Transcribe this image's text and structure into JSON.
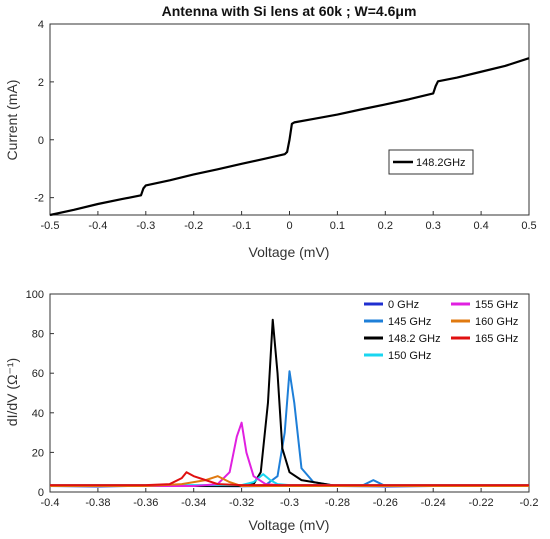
{
  "chart_data": [
    {
      "type": "line",
      "title": "Antenna with Si lens at 60k ; W=4.6μm",
      "xlabel": "Voltage (mV)",
      "ylabel": "Current (mA)",
      "xlim": [
        -0.5,
        0.5
      ],
      "ylim": [
        -2.6,
        4
      ],
      "xticks": [
        -0.5,
        -0.4,
        -0.3,
        -0.2,
        -0.1,
        0,
        0.1,
        0.2,
        0.3,
        0.4,
        0.5
      ],
      "xtick_labels": [
        "-0.5",
        "-0.4",
        "-0.3",
        "-0.2",
        "-0.1",
        "0",
        "0.1",
        "0.2",
        "0.3",
        "0.4",
        "0.5"
      ],
      "yticks": [
        -2,
        0,
        2,
        4
      ],
      "ytick_labels": [
        "-2",
        "0",
        "2",
        "4"
      ],
      "legend_position": "center-right",
      "series": [
        {
          "name": "148.2GHz",
          "color": "#000000",
          "x": [
            -0.5,
            -0.45,
            -0.4,
            -0.35,
            -0.31,
            -0.305,
            -0.3,
            -0.25,
            -0.2,
            -0.15,
            -0.1,
            -0.05,
            -0.01,
            -0.005,
            0,
            0.005,
            0.01,
            0.05,
            0.1,
            0.15,
            0.2,
            0.25,
            0.3,
            0.305,
            0.31,
            0.35,
            0.4,
            0.45,
            0.5
          ],
          "y": [
            -2.6,
            -2.42,
            -2.22,
            -2.05,
            -1.92,
            -1.68,
            -1.58,
            -1.4,
            -1.2,
            -1.02,
            -0.83,
            -0.65,
            -0.5,
            -0.42,
            0,
            0.55,
            0.6,
            0.72,
            0.87,
            1.05,
            1.22,
            1.4,
            1.6,
            1.85,
            2.02,
            2.15,
            2.35,
            2.55,
            2.82
          ]
        }
      ]
    },
    {
      "type": "line",
      "title": "",
      "xlabel": "Voltage (mV)",
      "ylabel": "dI/dV (Ω⁻¹)",
      "xlim": [
        -0.4,
        -0.2
      ],
      "ylim": [
        0,
        100
      ],
      "xticks": [
        -0.4,
        -0.38,
        -0.36,
        -0.34,
        -0.32,
        -0.3,
        -0.28,
        -0.26,
        -0.24,
        -0.22,
        -0.2
      ],
      "xtick_labels": [
        "-0.4",
        "-0.38",
        "-0.36",
        "-0.34",
        "-0.32",
        "-0.3",
        "-0.28",
        "-0.26",
        "-0.24",
        "-0.22",
        "-0.2"
      ],
      "yticks": [
        0,
        20,
        40,
        60,
        80,
        100
      ],
      "ytick_labels": [
        "0",
        "20",
        "40",
        "60",
        "80",
        "100"
      ],
      "legend_position": "top-right",
      "series": [
        {
          "name": "0 GHz",
          "color": "#1f2fd0",
          "x": [
            -0.4,
            -0.38,
            -0.36,
            -0.34,
            -0.32,
            -0.3,
            -0.28,
            -0.26,
            -0.24,
            -0.22,
            -0.2
          ],
          "y": [
            3,
            2.8,
            3.2,
            3,
            2.9,
            3.1,
            3,
            2.8,
            3,
            3.2,
            3
          ]
        },
        {
          "name": "145 GHz",
          "color": "#1e7fd8",
          "x": [
            -0.4,
            -0.38,
            -0.36,
            -0.34,
            -0.32,
            -0.31,
            -0.305,
            -0.302,
            -0.3,
            -0.298,
            -0.295,
            -0.29,
            -0.28,
            -0.27,
            -0.265,
            -0.26,
            -0.24,
            -0.22,
            -0.2
          ],
          "y": [
            3,
            3,
            3,
            3,
            3,
            3.5,
            8,
            30,
            61,
            45,
            12,
            5,
            3,
            3,
            6,
            3,
            3,
            3,
            3
          ]
        },
        {
          "name": "148.2 GHz",
          "color": "#000000",
          "x": [
            -0.4,
            -0.38,
            -0.36,
            -0.34,
            -0.32,
            -0.315,
            -0.312,
            -0.309,
            -0.307,
            -0.305,
            -0.303,
            -0.3,
            -0.295,
            -0.29,
            -0.285,
            -0.28,
            -0.26,
            -0.24,
            -0.22,
            -0.2
          ],
          "y": [
            3,
            3,
            3,
            3,
            3,
            4,
            10,
            45,
            87,
            60,
            22,
            10,
            6,
            5,
            4,
            3,
            3,
            3,
            3,
            3
          ]
        },
        {
          "name": "150 GHz",
          "color": "#19d6f0",
          "x": [
            -0.4,
            -0.38,
            -0.36,
            -0.34,
            -0.32,
            -0.315,
            -0.311,
            -0.308,
            -0.305,
            -0.3,
            -0.28,
            -0.26,
            -0.24,
            -0.22,
            -0.2
          ],
          "y": [
            3.5,
            3.5,
            3.5,
            3.5,
            3.5,
            5,
            9,
            6,
            4,
            3.5,
            3.5,
            3.5,
            3.5,
            3.5,
            3.5
          ]
        },
        {
          "name": "155 GHz",
          "color": "#e020e0",
          "x": [
            -0.4,
            -0.38,
            -0.36,
            -0.34,
            -0.33,
            -0.325,
            -0.322,
            -0.32,
            -0.318,
            -0.315,
            -0.31,
            -0.3,
            -0.28,
            -0.26,
            -0.24,
            -0.22,
            -0.2
          ],
          "y": [
            3,
            3,
            3,
            3,
            4,
            10,
            28,
            35,
            20,
            8,
            4,
            3,
            3,
            3,
            3,
            3,
            3
          ]
        },
        {
          "name": "160 GHz",
          "color": "#e07a10",
          "x": [
            -0.4,
            -0.38,
            -0.36,
            -0.345,
            -0.335,
            -0.33,
            -0.325,
            -0.32,
            -0.3,
            -0.28,
            -0.26,
            -0.24,
            -0.22,
            -0.2
          ],
          "y": [
            3,
            3,
            3,
            4,
            6,
            8,
            5,
            3,
            3,
            3,
            3,
            3,
            3,
            3
          ]
        },
        {
          "name": "165 GHz",
          "color": "#e01010",
          "x": [
            -0.4,
            -0.38,
            -0.36,
            -0.35,
            -0.345,
            -0.343,
            -0.34,
            -0.335,
            -0.33,
            -0.32,
            -0.3,
            -0.28,
            -0.26,
            -0.24,
            -0.22,
            -0.2
          ],
          "y": [
            3.5,
            3.5,
            3.5,
            4,
            7,
            10,
            8,
            6,
            4,
            3.5,
            3.5,
            3.5,
            3.5,
            3.5,
            3.5,
            3.5
          ]
        }
      ]
    }
  ]
}
